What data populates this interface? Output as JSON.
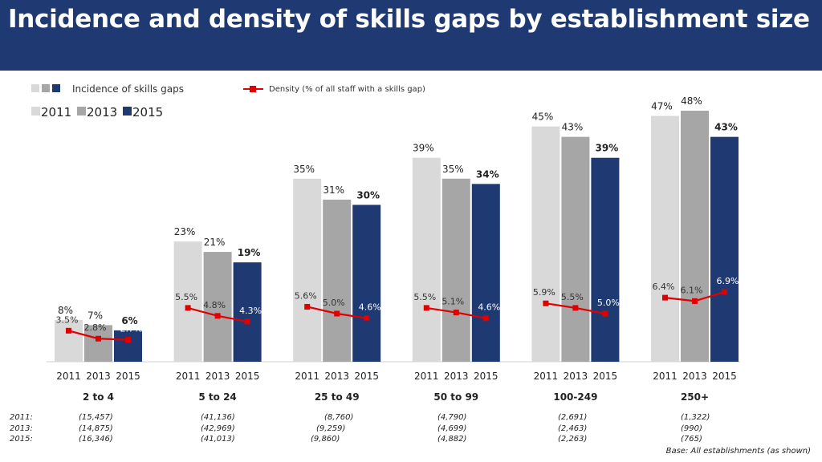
{
  "title": "Incidence and density of skills gaps by establishment size",
  "chart_data": {
    "type": "bar",
    "title": "Incidence and density of skills gaps by establishment size",
    "legend": {
      "incidence_label": "Incidence of skills gaps",
      "density_label": "Density (% of all staff with a skills gap)",
      "years": [
        "2011",
        "2013",
        "2015"
      ]
    },
    "categories": [
      "2 to 4",
      "5 to 24",
      "25 to 49",
      "50 to 99",
      "100-249",
      "250+"
    ],
    "years": [
      "2011",
      "2013",
      "2015"
    ],
    "ylim": [
      0,
      50
    ],
    "colors": {
      "2011": "#d9d9d9",
      "2013": "#a6a6a6",
      "2015": "#1f3a72",
      "density": "#e00000"
    },
    "series": [
      {
        "name": "2011",
        "values": [
          8,
          23,
          35,
          39,
          45,
          47
        ]
      },
      {
        "name": "2013",
        "values": [
          7,
          21,
          31,
          35,
          43,
          48
        ]
      },
      {
        "name": "2015",
        "values": [
          6,
          19,
          30,
          34,
          39,
          43
        ]
      }
    ],
    "density_series": [
      {
        "category": "2 to 4",
        "values": [
          3.5,
          2.8,
          2.7
        ]
      },
      {
        "category": "5 to 24",
        "values": [
          5.5,
          4.8,
          4.3
        ]
      },
      {
        "category": "25 to 49",
        "values": [
          5.6,
          5.0,
          4.6
        ]
      },
      {
        "category": "50 to 99",
        "values": [
          5.5,
          5.1,
          4.6
        ]
      },
      {
        "category": "100-249",
        "values": [
          5.9,
          5.5,
          5.0
        ]
      },
      {
        "category": "250+",
        "values": [
          6.4,
          6.1,
          6.9
        ]
      }
    ]
  },
  "base": {
    "row_labels": [
      "2011:",
      "2013:",
      "2015:"
    ],
    "values": [
      [
        "(15,457)",
        "(41,136)",
        "(8,760)",
        "(4,790)",
        "(2,691)",
        "(1,322)"
      ],
      [
        "(14,875)",
        "(42,969)",
        "(9,259)",
        "(4,699)",
        "(2,463)",
        "(990)"
      ],
      [
        "(16,346)",
        "(41,013)",
        "(9,860)",
        "(4,882)",
        "(2,263)",
        "(765)"
      ]
    ],
    "note": "Base: All establishments (as shown)"
  }
}
